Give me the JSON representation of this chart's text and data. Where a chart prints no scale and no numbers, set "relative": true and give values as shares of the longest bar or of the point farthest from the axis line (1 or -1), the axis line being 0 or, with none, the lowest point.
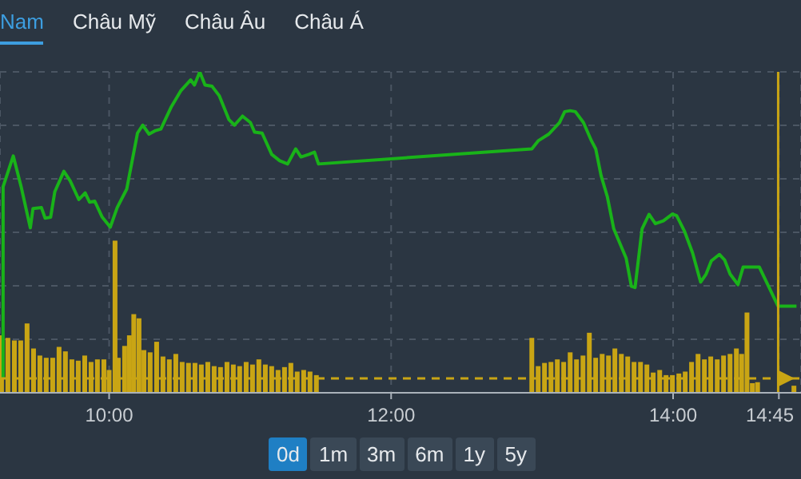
{
  "chart_data": {
    "type": "line",
    "relative": true,
    "xlim": [
      9.226,
      14.907
    ],
    "xticks": [
      {
        "value": 10,
        "label": "10:00"
      },
      {
        "value": 12,
        "label": "12:00"
      },
      {
        "value": 14,
        "label": "14:00"
      },
      {
        "value": 14.75,
        "label": "14:45"
      }
    ],
    "grid": true,
    "marker": "none",
    "line_style": "solid",
    "annotations": [
      "Nam",
      "Châu Mỹ",
      "Châu Âu",
      "Châu Á",
      "0d",
      "1m",
      "3m",
      "6m",
      "1y",
      "5y"
    ],
    "ref_lines": [
      {
        "axis": "y",
        "value": 0.045,
        "color": "#c9a514",
        "line_style": "dashed"
      },
      {
        "axis": "x",
        "value": 14.745,
        "color": "#c9a514",
        "line_style": "solid"
      }
    ],
    "series": [
      {
        "color": "#19b319",
        "x": [
          9.248,
          9.248,
          9.32,
          9.376,
          9.441,
          9.46,
          9.52,
          9.546,
          9.585,
          9.615,
          9.679,
          9.724,
          9.785,
          9.83,
          9.861,
          9.898,
          9.951,
          10.008,
          10.057,
          10.125,
          10.201,
          10.238,
          10.283,
          10.329,
          10.367,
          10.442,
          10.51,
          10.578,
          10.605,
          10.643,
          10.68,
          10.73,
          10.782,
          10.85,
          10.889,
          10.946,
          11.002,
          11.032,
          11.085,
          11.153,
          11.21,
          11.266,
          11.323,
          11.361,
          11.417,
          11.456,
          11.485,
          12.998,
          13.043,
          13.118,
          13.194,
          13.231,
          13.27,
          13.307,
          13.364,
          13.421,
          13.451,
          13.489,
          13.534,
          13.579,
          13.667,
          13.704,
          13.73,
          13.78,
          13.829,
          13.874,
          13.931,
          13.995,
          14.025,
          14.082,
          14.138,
          14.195,
          14.234,
          14.271,
          14.328,
          14.365,
          14.404,
          14.46,
          14.497,
          14.611,
          14.744,
          14.875
        ],
        "values": [
          0.045,
          0.642,
          0.738,
          0.642,
          0.514,
          0.574,
          0.577,
          0.544,
          0.547,
          0.627,
          0.69,
          0.66,
          0.602,
          0.623,
          0.594,
          0.597,
          0.547,
          0.516,
          0.577,
          0.635,
          0.809,
          0.834,
          0.806,
          0.817,
          0.822,
          0.892,
          0.942,
          0.975,
          0.959,
          1,
          0.959,
          0.955,
          0.925,
          0.851,
          0.834,
          0.862,
          0.842,
          0.812,
          0.809,
          0.743,
          0.723,
          0.713,
          0.76,
          0.735,
          0.743,
          0.75,
          0.713,
          0.76,
          0.785,
          0.806,
          0.842,
          0.876,
          0.879,
          0.876,
          0.842,
          0.785,
          0.76,
          0.677,
          0.61,
          0.511,
          0.419,
          0.332,
          0.328,
          0.511,
          0.556,
          0.527,
          0.536,
          0.557,
          0.552,
          0.502,
          0.436,
          0.345,
          0.37,
          0.411,
          0.431,
          0.414,
          0.37,
          0.337,
          0.392,
          0.392,
          0.27,
          0.27
        ]
      },
      {
        "type": "bar",
        "color": "#c9a514",
        "x": [
          9.237,
          9.282,
          9.328,
          9.373,
          9.418,
          9.464,
          9.509,
          9.554,
          9.6,
          9.645,
          9.69,
          9.736,
          9.781,
          9.827,
          9.872,
          9.917,
          9.963,
          10.0,
          10.042,
          10.065,
          10.11,
          10.144,
          10.175,
          10.212,
          10.247,
          10.291,
          10.337,
          10.382,
          10.427,
          10.473,
          10.518,
          10.563,
          10.609,
          10.654,
          10.7,
          10.745,
          10.79,
          10.836,
          10.881,
          10.926,
          10.972,
          11.017,
          11.062,
          11.108,
          11.153,
          11.198,
          11.244,
          11.289,
          11.334,
          11.38,
          11.425,
          11.47,
          12.998,
          13.043,
          13.088,
          13.134,
          13.179,
          13.224,
          13.27,
          13.315,
          13.361,
          13.406,
          13.451,
          13.497,
          13.542,
          13.587,
          13.633,
          13.678,
          13.723,
          13.769,
          13.814,
          13.859,
          13.905,
          13.95,
          13.995,
          14.041,
          14.086,
          14.131,
          14.177,
          14.222,
          14.267,
          14.313,
          14.358,
          14.404,
          14.449,
          14.486,
          14.524,
          14.562,
          14.599,
          14.857
        ],
        "values": [
          0.179,
          0.171,
          0.163,
          0.163,
          0.216,
          0.138,
          0.116,
          0.109,
          0.109,
          0.143,
          0.129,
          0.104,
          0.1,
          0.116,
          0.096,
          0.104,
          0.104,
          0.071,
          0.474,
          0.109,
          0.146,
          0.179,
          0.245,
          0.232,
          0.133,
          0.126,
          0.159,
          0.113,
          0.104,
          0.121,
          0.096,
          0.093,
          0.093,
          0.088,
          0.096,
          0.083,
          0.08,
          0.096,
          0.088,
          0.083,
          0.096,
          0.088,
          0.104,
          0.088,
          0.083,
          0.071,
          0.08,
          0.093,
          0.066,
          0.071,
          0.066,
          0.055,
          0.171,
          0.083,
          0.093,
          0.096,
          0.104,
          0.096,
          0.126,
          0.104,
          0.116,
          0.187,
          0.109,
          0.121,
          0.116,
          0.138,
          0.121,
          0.113,
          0.096,
          0.096,
          0.088,
          0.063,
          0.071,
          0.055,
          0.055,
          0.06,
          0.066,
          0.096,
          0.121,
          0.104,
          0.113,
          0.104,
          0.116,
          0.121,
          0.138,
          0.121,
          0.25,
          0.03,
          0.033,
          0.022
        ]
      }
    ]
  }
}
